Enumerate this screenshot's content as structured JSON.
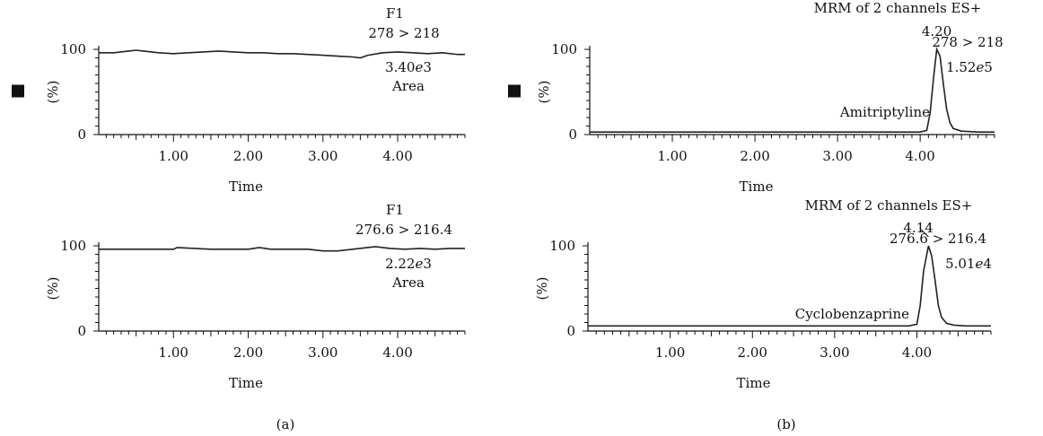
{
  "chart_data": [
    {
      "type": "line",
      "panel": "(a)",
      "title": "F1",
      "transition": "278 > 218",
      "intensity": "3.40e3",
      "metric": "Area",
      "xlabel": "Time",
      "ylabel": "(%)",
      "xlim": [
        0,
        4.9
      ],
      "ylim": [
        0,
        100
      ],
      "xticklabels": [
        "1.00",
        "2.00",
        "3.00",
        "4.00"
      ],
      "yticklabels": [
        "0",
        "100"
      ],
      "marker": "■",
      "series": [
        {
          "x": [
            0,
            0.2,
            0.4,
            0.5,
            0.6,
            0.8,
            1.0,
            1.2,
            1.4,
            1.6,
            1.8,
            2.0,
            2.2,
            2.4,
            2.6,
            2.8,
            3.0,
            3.2,
            3.4,
            3.5,
            3.6,
            3.8,
            4.0,
            4.2,
            4.4,
            4.6,
            4.8,
            4.9
          ],
          "y": [
            96,
            96,
            98,
            99,
            98,
            96,
            95,
            96,
            97,
            98,
            97,
            96,
            96,
            95,
            95,
            94,
            93,
            92,
            91,
            90,
            93,
            96,
            97,
            96,
            95,
            96,
            94,
            94
          ]
        }
      ]
    },
    {
      "type": "line",
      "panel": "(b)",
      "title": "MRM of 2 channels ES+",
      "transition": "278 > 218",
      "intensity": "1.52e5",
      "peak_label": "4.20",
      "compound": "Amitriptyline",
      "xlabel": "Time",
      "ylabel": "(%)",
      "xlim": [
        0,
        4.9
      ],
      "ylim": [
        0,
        100
      ],
      "xticklabels": [
        "1.00",
        "2.00",
        "3.00",
        "4.00"
      ],
      "yticklabels": [
        "0",
        "100"
      ],
      "marker": "■",
      "series": [
        {
          "x": [
            0,
            1,
            2,
            3,
            4.0,
            4.08,
            4.12,
            4.16,
            4.2,
            4.24,
            4.28,
            4.32,
            4.36,
            4.4,
            4.5,
            4.7,
            4.9
          ],
          "y": [
            3,
            3,
            3,
            3,
            3,
            5,
            25,
            65,
            100,
            92,
            60,
            30,
            14,
            7,
            4,
            3,
            3
          ]
        }
      ]
    },
    {
      "type": "line",
      "panel": "(a)",
      "title": "F1",
      "transition": "276.6 > 216.4",
      "intensity": "2.22e3",
      "metric": "Area",
      "xlabel": "Time",
      "ylabel": "(%)",
      "xlim": [
        0,
        4.9
      ],
      "ylim": [
        0,
        100
      ],
      "xticklabels": [
        "1.00",
        "2.00",
        "3.00",
        "4.00"
      ],
      "yticklabels": [
        "0",
        "100"
      ],
      "series": [
        {
          "x": [
            0,
            0.5,
            1.0,
            1.05,
            1.5,
            2.0,
            2.15,
            2.3,
            2.8,
            3.0,
            3.2,
            3.4,
            3.7,
            3.9,
            4.1,
            4.3,
            4.5,
            4.7,
            4.9
          ],
          "y": [
            96,
            96,
            96,
            98,
            96,
            96,
            98,
            96,
            96,
            94,
            94,
            96,
            99,
            97,
            96,
            97,
            96,
            97,
            97
          ]
        }
      ]
    },
    {
      "type": "line",
      "panel": "(b)",
      "title": "MRM of 2 channels ES+",
      "transition": "276.6 > 216.4",
      "intensity": "5.01e4",
      "peak_label": "4.14",
      "compound": "Cyclobenzaprine",
      "xlabel": "Time",
      "ylabel": "(%)",
      "xlim": [
        0,
        4.9
      ],
      "ylim": [
        0,
        100
      ],
      "xticklabels": [
        "1.00",
        "2.00",
        "3.00",
        "4.00"
      ],
      "yticklabels": [
        "0",
        "100"
      ],
      "series": [
        {
          "x": [
            0,
            1,
            2,
            3,
            3.9,
            4.0,
            4.04,
            4.08,
            4.14,
            4.18,
            4.22,
            4.26,
            4.3,
            4.36,
            4.45,
            4.6,
            4.9
          ],
          "y": [
            6,
            6,
            6,
            6,
            6,
            8,
            30,
            70,
            100,
            88,
            60,
            30,
            16,
            9,
            7,
            6,
            6
          ]
        }
      ]
    }
  ],
  "panel_labels": [
    "(a)",
    "(b)"
  ]
}
